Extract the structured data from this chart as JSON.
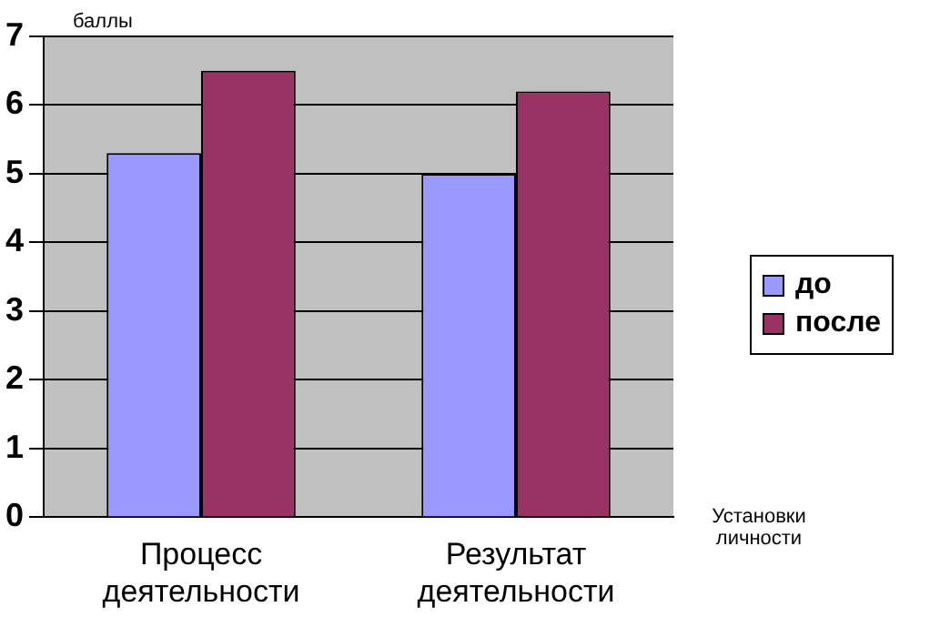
{
  "chart_data": {
    "type": "bar",
    "ylabel": "баллы",
    "xlabel": "Установки личности",
    "categories": [
      "Процесс деятельности",
      "Результат деятельности"
    ],
    "series": [
      {
        "name": "до",
        "color": "#9999ff",
        "values": [
          5.3,
          5.0
        ]
      },
      {
        "name": "после",
        "color": "#993366",
        "values": [
          6.5,
          6.2
        ]
      }
    ],
    "ylim": [
      0,
      7
    ],
    "yticks": [
      0,
      1,
      2,
      3,
      4,
      5,
      6,
      7
    ],
    "grid": "y",
    "legend": "right"
  }
}
